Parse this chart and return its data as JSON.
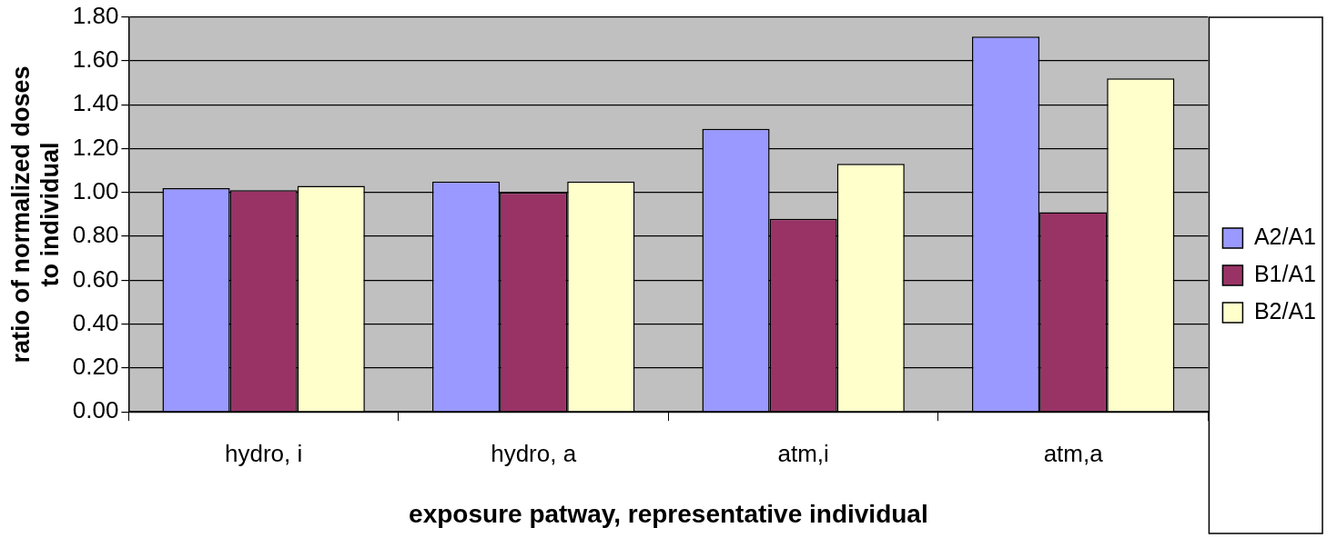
{
  "chart_data": {
    "type": "bar",
    "xlabel": "exposure patway, representative individual",
    "ylabel": "ratio of normalized doses\nto individual",
    "categories": [
      "hydro, i",
      "hydro, a",
      "atm,i",
      "atm,a"
    ],
    "series": [
      {
        "name": "A2/A1",
        "color": "#9999ff",
        "values": [
          1.02,
          1.05,
          1.29,
          1.71
        ]
      },
      {
        "name": "B1/A1",
        "color": "#993366",
        "values": [
          1.01,
          1.0,
          0.88,
          0.91
        ]
      },
      {
        "name": "B2/A1",
        "color": "#ffffcc",
        "values": [
          1.03,
          1.05,
          1.13,
          1.52
        ]
      }
    ],
    "ylim": [
      0,
      1.8
    ],
    "yticks": [
      {
        "value": 0,
        "label": "0.00"
      },
      {
        "value": 0.2,
        "label": "0.20"
      },
      {
        "value": 0.4,
        "label": "0.40"
      },
      {
        "value": 0.6,
        "label": "0.60"
      },
      {
        "value": 0.8,
        "label": "0.80"
      },
      {
        "value": 1.0,
        "label": "1.00"
      },
      {
        "value": 1.2,
        "label": "1.20"
      },
      {
        "value": 1.4,
        "label": "1.40"
      },
      {
        "value": 1.6,
        "label": "1.60"
      },
      {
        "value": 1.8,
        "label": "1.80"
      }
    ],
    "grid": "y",
    "legend": "right"
  }
}
